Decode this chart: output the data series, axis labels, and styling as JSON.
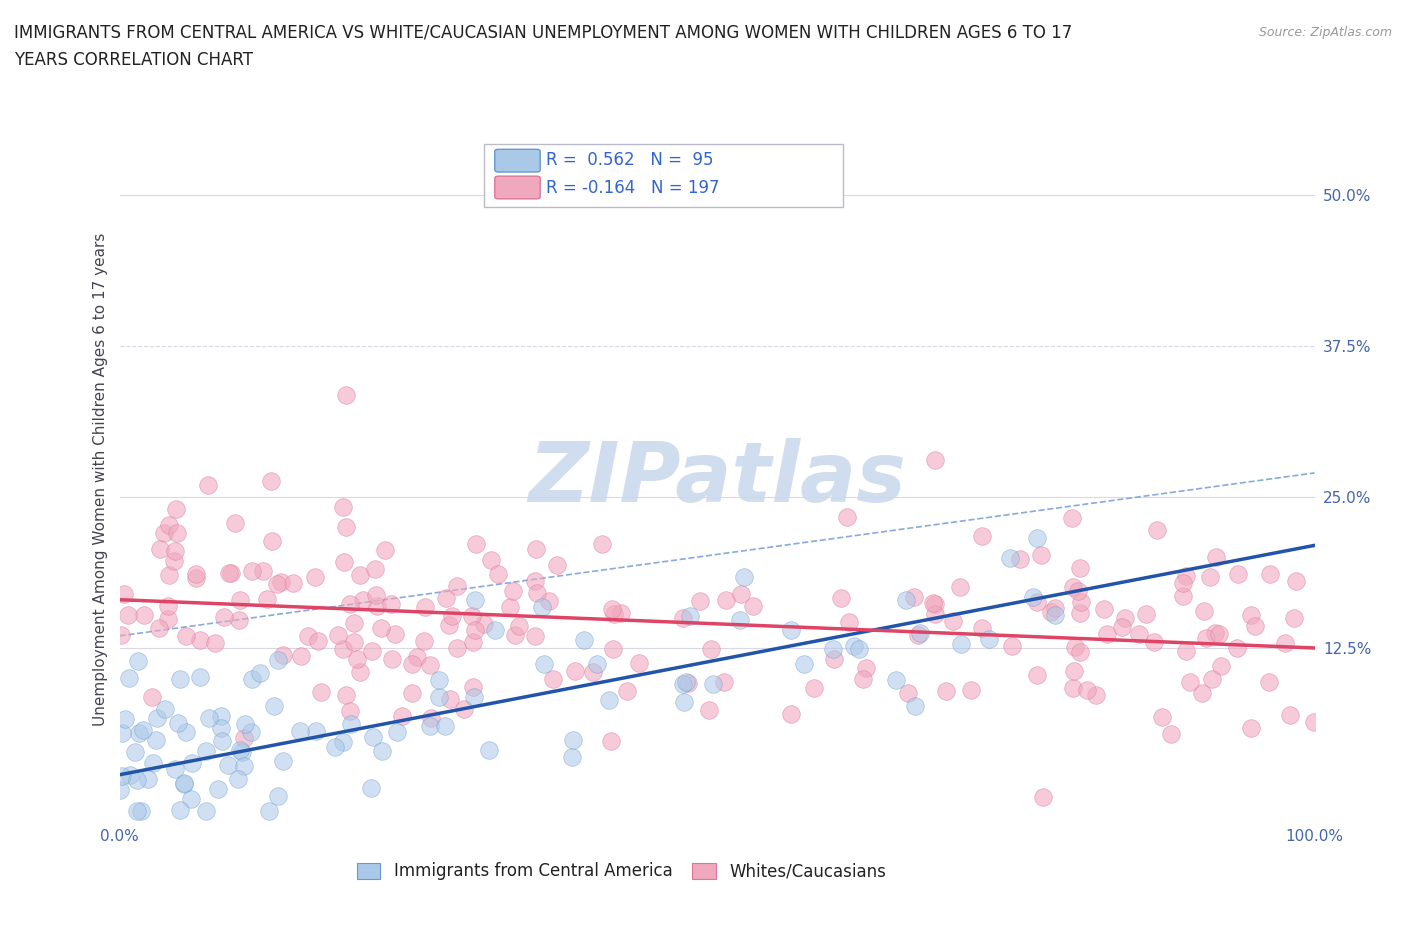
{
  "title_line1": "IMMIGRANTS FROM CENTRAL AMERICA VS WHITE/CAUCASIAN UNEMPLOYMENT AMONG WOMEN WITH CHILDREN AGES 6 TO 17",
  "title_line2": "YEARS CORRELATION CHART",
  "source": "Source: ZipAtlas.com",
  "ylabel": "Unemployment Among Women with Children Ages 6 to 17 years",
  "xlim": [
    0,
    100
  ],
  "ylim": [
    -2,
    55
  ],
  "blue_R": 0.562,
  "blue_N": 95,
  "pink_R": -0.164,
  "pink_N": 197,
  "blue_fill_color": "#aac8e8",
  "pink_fill_color": "#f0a8be",
  "blue_edge_color": "#6699cc",
  "pink_edge_color": "#dd7799",
  "blue_line_color": "#2255aa",
  "pink_line_color": "#dd4466",
  "dash_line_color": "#88aadd",
  "legend_color": "#3366cc",
  "watermark_color": "#c8d8ec",
  "background_color": "#ffffff",
  "grid_color": "#d8d8e8",
  "title_color": "#222222",
  "axis_label_color": "#444455",
  "tick_label_color": "#4466aa",
  "ytick_values": [
    0,
    12.5,
    25.0,
    37.5,
    50.0
  ],
  "ytick_labels": [
    "",
    "12.5%",
    "25.0%",
    "37.5%",
    "50.0%"
  ],
  "xtick_values": [
    0,
    10,
    20,
    30,
    40,
    50,
    60,
    70,
    80,
    90,
    100
  ],
  "xtick_labels": [
    "0.0%",
    "",
    "",
    "",
    "",
    "",
    "",
    "",
    "",
    "",
    "100.0%"
  ],
  "legend_blue_label": "Immigrants from Central America",
  "legend_pink_label": "Whites/Caucasians",
  "title_fontsize": 12,
  "axis_label_fontsize": 11,
  "tick_fontsize": 11,
  "legend_fontsize": 12,
  "blue_trend_x0": 0,
  "blue_trend_x1": 100,
  "blue_trend_y0": 2.0,
  "blue_trend_y1": 21.0,
  "pink_trend_x0": 0,
  "pink_trend_x1": 100,
  "pink_trend_y0": 16.5,
  "pink_trend_y1": 12.5,
  "dash_x0": 0,
  "dash_x1": 100,
  "dash_y0": 13.5,
  "dash_y1": 27.0
}
